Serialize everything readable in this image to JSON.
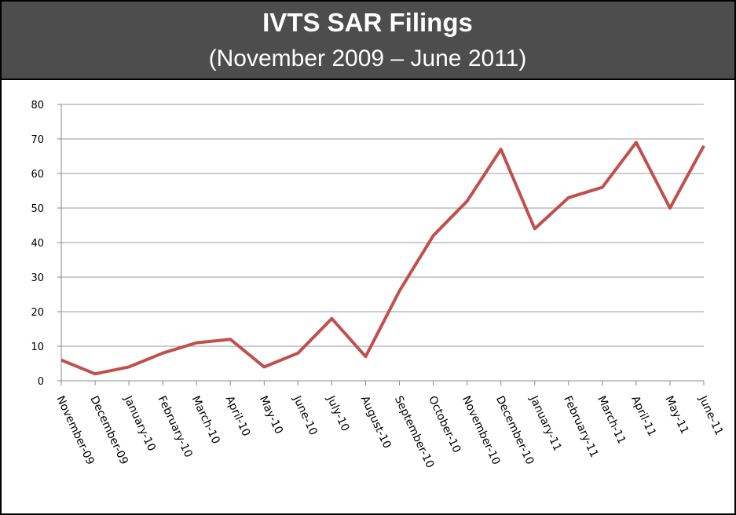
{
  "chart_data": {
    "type": "line",
    "title": "IVTS SAR Filings",
    "subtitle": "(November 2009 – June 2011)",
    "categories": [
      "November-09",
      "December-09",
      "January-10",
      "February-10",
      "March-10",
      "April-10",
      "May-10",
      "June-10",
      "July-10",
      "August-10",
      "September-10",
      "October-10",
      "November-10",
      "December-10",
      "January-11",
      "February-11",
      "March-11",
      "April-11",
      "May-11",
      "June-11"
    ],
    "values": [
      6,
      2,
      4,
      8,
      11,
      12,
      4,
      8,
      18,
      7,
      26,
      42,
      52,
      67,
      44,
      53,
      56,
      69,
      50,
      68
    ],
    "color": "#c0504d",
    "ylim": [
      0,
      80
    ],
    "yticks": [
      0,
      10,
      20,
      30,
      40,
      50,
      60,
      70,
      80
    ],
    "grid": true
  }
}
